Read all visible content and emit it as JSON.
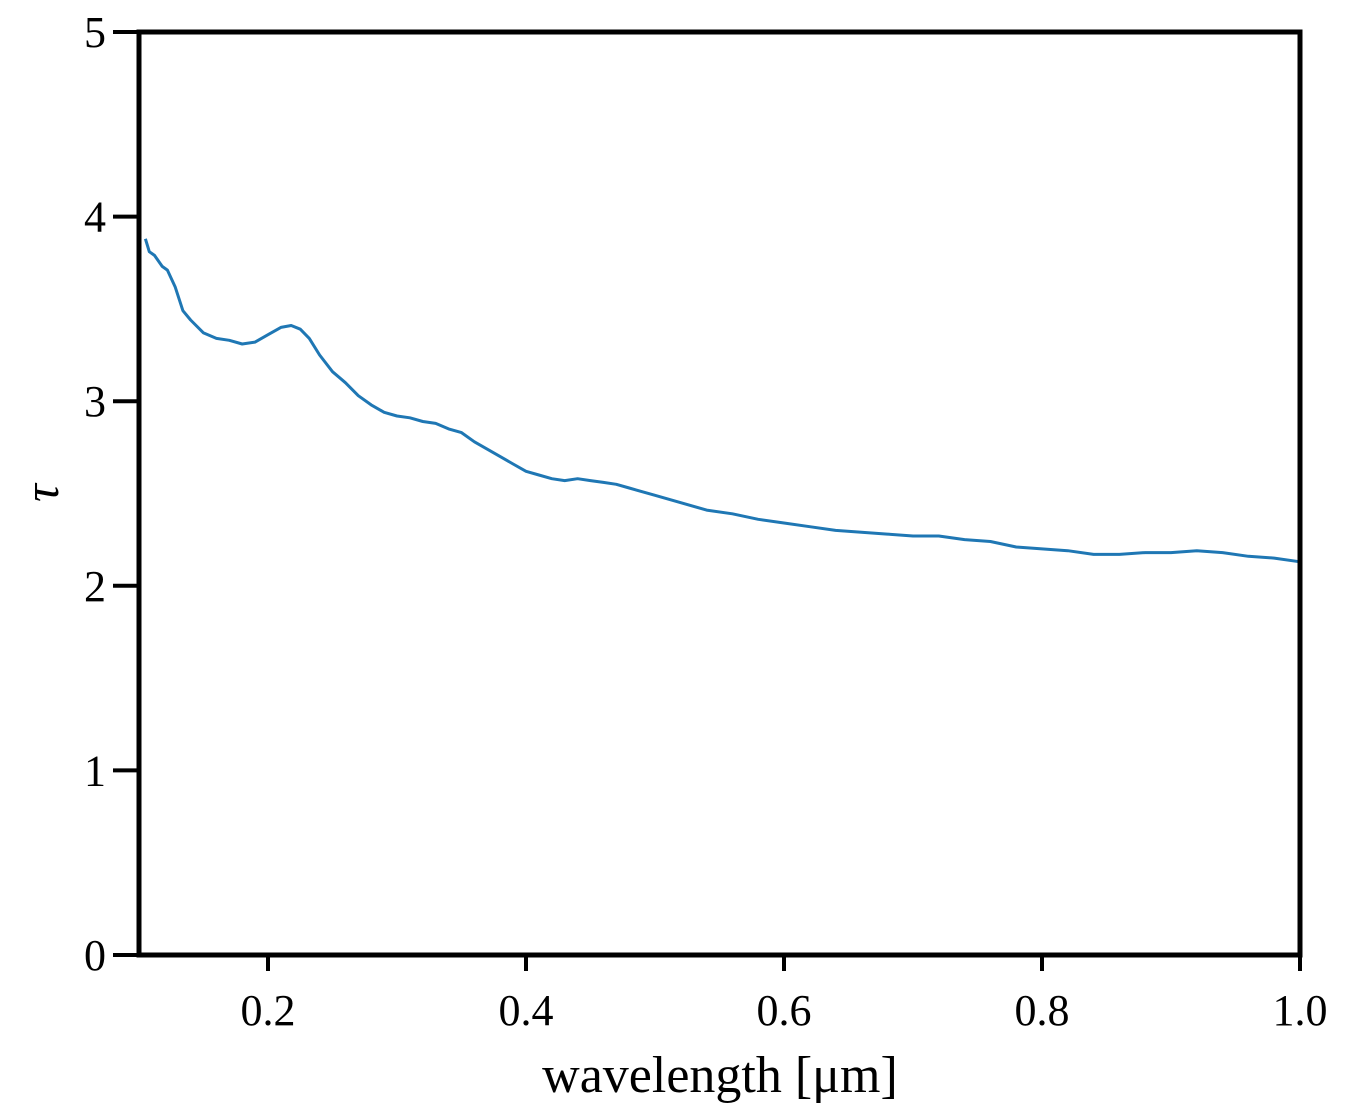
{
  "chart_data": {
    "type": "line",
    "xlabel": "wavelength [μm]",
    "ylabel": "τ",
    "xlim": [
      0.1,
      1.0
    ],
    "ylim": [
      0,
      5
    ],
    "xticks": [
      "0.2",
      "0.4",
      "0.6",
      "0.8",
      "1.0"
    ],
    "yticks": [
      "0",
      "1",
      "2",
      "3",
      "4",
      "5"
    ],
    "grid": false,
    "series": [
      {
        "color": "#1f77b4",
        "x": [
          0.105,
          0.108,
          0.112,
          0.118,
          0.122,
          0.128,
          0.134,
          0.14,
          0.15,
          0.16,
          0.17,
          0.18,
          0.19,
          0.2,
          0.21,
          0.218,
          0.225,
          0.232,
          0.24,
          0.25,
          0.26,
          0.27,
          0.28,
          0.29,
          0.3,
          0.31,
          0.32,
          0.33,
          0.34,
          0.35,
          0.36,
          0.37,
          0.38,
          0.39,
          0.4,
          0.41,
          0.42,
          0.43,
          0.44,
          0.45,
          0.46,
          0.47,
          0.48,
          0.49,
          0.5,
          0.52,
          0.54,
          0.56,
          0.58,
          0.6,
          0.62,
          0.64,
          0.66,
          0.68,
          0.7,
          0.72,
          0.74,
          0.76,
          0.78,
          0.8,
          0.82,
          0.84,
          0.86,
          0.88,
          0.9,
          0.92,
          0.94,
          0.96,
          0.98,
          1.0
        ],
        "y": [
          3.88,
          3.81,
          3.79,
          3.73,
          3.71,
          3.62,
          3.49,
          3.44,
          3.37,
          3.34,
          3.33,
          3.31,
          3.32,
          3.36,
          3.4,
          3.41,
          3.39,
          3.34,
          3.25,
          3.16,
          3.1,
          3.03,
          2.98,
          2.94,
          2.92,
          2.91,
          2.89,
          2.88,
          2.85,
          2.83,
          2.78,
          2.74,
          2.7,
          2.66,
          2.62,
          2.6,
          2.58,
          2.57,
          2.58,
          2.57,
          2.56,
          2.55,
          2.53,
          2.51,
          2.49,
          2.45,
          2.41,
          2.39,
          2.36,
          2.34,
          2.32,
          2.3,
          2.29,
          2.28,
          2.27,
          2.27,
          2.25,
          2.24,
          2.21,
          2.2,
          2.19,
          2.17,
          2.17,
          2.18,
          2.18,
          2.19,
          2.18,
          2.16,
          2.15,
          2.13
        ]
      }
    ]
  }
}
